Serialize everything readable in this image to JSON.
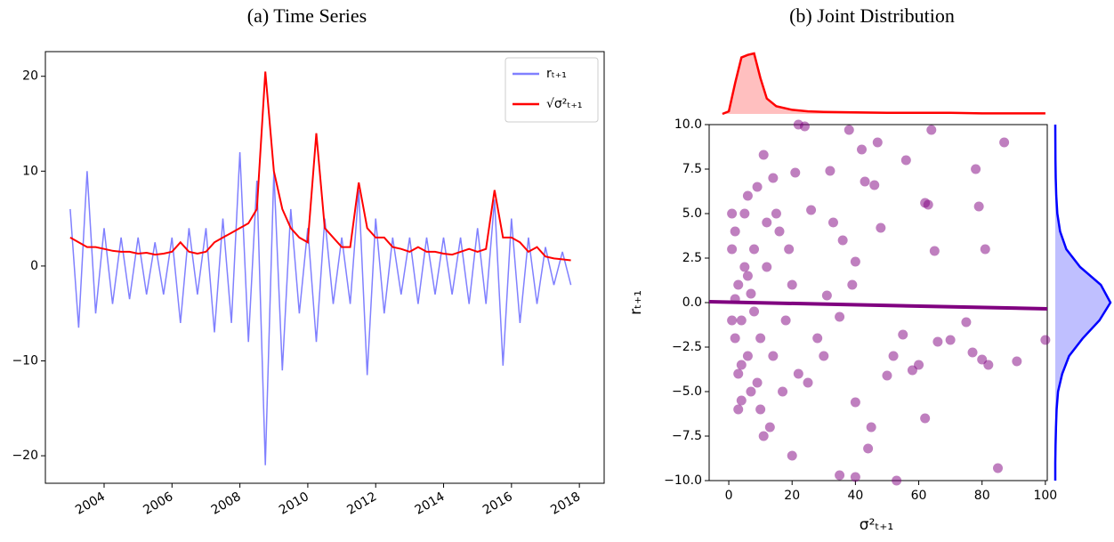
{
  "chart_data": [
    {
      "type": "line",
      "title": "(a) Time Series",
      "x": [
        2003,
        2003.25,
        2003.5,
        2003.75,
        2004,
        2004.25,
        2004.5,
        2004.75,
        2005,
        2005.25,
        2005.5,
        2005.75,
        2006,
        2006.25,
        2006.5,
        2006.75,
        2007,
        2007.25,
        2007.5,
        2007.75,
        2008,
        2008.25,
        2008.5,
        2008.75,
        2009,
        2009.25,
        2009.5,
        2009.75,
        2010,
        2010.25,
        2010.5,
        2010.75,
        2011,
        2011.25,
        2011.5,
        2011.75,
        2012,
        2012.25,
        2012.5,
        2012.75,
        2013,
        2013.25,
        2013.5,
        2013.75,
        2014,
        2014.25,
        2014.5,
        2014.75,
        2015,
        2015.25,
        2015.5,
        2015.75,
        2016,
        2016.25,
        2016.5,
        2016.75,
        2017,
        2017.25,
        2017.5,
        2017.75
      ],
      "series": [
        {
          "name": "rₜ₊₁",
          "color": "#8080ff",
          "values": [
            6,
            -6.5,
            10,
            -5,
            4,
            -4,
            3,
            -3.5,
            3,
            -3,
            2.5,
            -3,
            3,
            -6,
            4,
            -3,
            4,
            -7,
            5,
            -6,
            12,
            -8,
            9,
            -21,
            10,
            -11,
            6,
            -5,
            4,
            -8,
            5,
            -4,
            3,
            -4,
            8,
            -11.5,
            5,
            -5,
            3,
            -3,
            3,
            -4,
            3,
            -3,
            3,
            -3,
            3,
            -4,
            4,
            -4,
            7,
            -10.5,
            5,
            -6,
            3,
            -4,
            2,
            -2,
            1.5,
            -2
          ]
        },
        {
          "name": "√σ²ₜ₊₁",
          "color": "#ff0000",
          "values": [
            3,
            2.5,
            2,
            2,
            1.8,
            1.6,
            1.5,
            1.5,
            1.3,
            1.4,
            1.2,
            1.3,
            1.5,
            2.5,
            1.5,
            1.3,
            1.5,
            2.5,
            3,
            3.5,
            4,
            4.5,
            6,
            20.5,
            10,
            6,
            4,
            3,
            2.5,
            14,
            4,
            3,
            2,
            2,
            8.8,
            4,
            3,
            3,
            2,
            1.8,
            1.5,
            2,
            1.5,
            1.5,
            1.3,
            1.2,
            1.5,
            1.8,
            1.5,
            1.8,
            8,
            3,
            3,
            2.5,
            1.5,
            2,
            1,
            0.8,
            0.7,
            0.6
          ]
        }
      ],
      "xlim": [
        2002.27,
        2018.73
      ],
      "xticks": [
        2004,
        2006,
        2008,
        2010,
        2012,
        2014,
        2016,
        2018
      ],
      "ylim": [
        -22.9,
        22.6
      ],
      "yticks": [
        {
          "value": -20,
          "label": "−20"
        },
        {
          "value": -10,
          "label": "−10"
        },
        0,
        10,
        20
      ],
      "legend": "upper right"
    },
    {
      "type": "scatter",
      "title": "(b) Joint Distribution",
      "xlabel": "σ²ₜ₊₁",
      "ylabel": "rₜ₊₁",
      "color": "#800080",
      "x": [
        1,
        2,
        3,
        4,
        5,
        6,
        7,
        8,
        2,
        3,
        5,
        7,
        9,
        10,
        1,
        2,
        4,
        6,
        8,
        10,
        12,
        14,
        16,
        18,
        20,
        13,
        15,
        17,
        19,
        22,
        11,
        14,
        21,
        22,
        24,
        20,
        25,
        26,
        28,
        30,
        31,
        32,
        33,
        35,
        36,
        38,
        39,
        40,
        40,
        40,
        42,
        43,
        45,
        46,
        47,
        48,
        50,
        52,
        55,
        56,
        58,
        60,
        62,
        63,
        62,
        64,
        65,
        66,
        70,
        75,
        77,
        78,
        79,
        80,
        81,
        82,
        87,
        85,
        91,
        100,
        35,
        44,
        53,
        3,
        6,
        1,
        4,
        9,
        11,
        12
      ],
      "values": [
        3,
        -2,
        1,
        -1,
        2,
        -3,
        0.5,
        -0.5,
        0.2,
        -4,
        5,
        -5,
        6.5,
        -6,
        -1,
        4,
        -3.5,
        1.5,
        3,
        -2,
        2,
        -3,
        4,
        -1,
        1,
        -7,
        5,
        -5,
        3,
        -4,
        8.3,
        7,
        7.3,
        10,
        9.9,
        -8.6,
        -4.5,
        5.2,
        -2,
        -3,
        0.4,
        7.4,
        4.5,
        -0.8,
        3.5,
        9.7,
        1,
        2.3,
        -5.6,
        -9.8,
        8.6,
        6.8,
        -7,
        6.6,
        9,
        4.2,
        -4.1,
        -3,
        -1.8,
        8,
        -3.8,
        -3.5,
        5.6,
        5.5,
        -6.5,
        9.7,
        2.9,
        -2.2,
        -2.1,
        -1.1,
        -2.8,
        7.5,
        5.4,
        -3.2,
        3,
        -3.5,
        9,
        -9.3,
        -3.3,
        -2.1,
        -9.7,
        -8.2,
        -10,
        -6,
        6,
        5,
        -5.5,
        -4.5,
        -7.5,
        4.5
      ],
      "trend": {
        "x": [
          -6.2,
          100.6
        ],
        "y": [
          0.05,
          -0.35
        ]
      },
      "top_density": {
        "color": "#ff0000",
        "x": [
          -2,
          0,
          2,
          4,
          6,
          8,
          10,
          12,
          15,
          20,
          25,
          30,
          40,
          50,
          60,
          70,
          80,
          90,
          100
        ],
        "y": [
          0,
          0.005,
          0.06,
          0.11,
          0.115,
          0.118,
          0.07,
          0.03,
          0.015,
          0.008,
          0.005,
          0.004,
          0.003,
          0.002,
          0.002,
          0.002,
          0.001,
          0.001,
          0.001
        ]
      },
      "right_density": {
        "color": "#0000ff",
        "y": [
          -10,
          -9,
          -8,
          -7,
          -6,
          -5,
          -4,
          -3,
          -2,
          -1,
          0,
          1,
          2,
          3,
          4,
          5,
          6,
          7,
          8,
          9,
          10
        ],
        "x": [
          0,
          0,
          0.002,
          0.005,
          0.01,
          0.02,
          0.05,
          0.1,
          0.2,
          0.32,
          0.4,
          0.33,
          0.18,
          0.08,
          0.035,
          0.015,
          0.007,
          0.003,
          0.001,
          0.0005,
          0
        ]
      },
      "xlim": [
        -6.2,
        100.6
      ],
      "xticks": [
        0,
        20,
        40,
        60,
        80,
        100
      ],
      "ylim": [
        -10,
        10
      ],
      "yticks": [
        {
          "value": -10,
          "label": "−10.0"
        },
        {
          "value": -7.5,
          "label": "−7.5"
        },
        {
          "value": -5,
          "label": "−5.0"
        },
        {
          "value": -2.5,
          "label": "−2.5"
        },
        {
          "value": 0,
          "label": "0.0"
        },
        2.5,
        {
          "value": 5,
          "label": "5.0"
        },
        7.5,
        {
          "value": 10,
          "label": "10.0"
        }
      ]
    }
  ]
}
